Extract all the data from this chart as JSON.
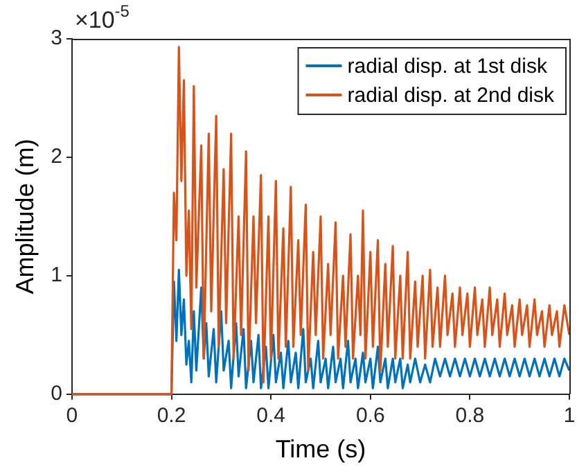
{
  "chart_data": {
    "type": "line",
    "xlabel": "Time (s)",
    "ylabel": "Amplitude (m)",
    "annotations": [
      "×10$^{-5}$"
    ],
    "xlim": [
      0,
      1
    ],
    "xticks": [
      0,
      0.2,
      0.4,
      0.6,
      0.8,
      1
    ],
    "ylim": [
      0,
      3
    ],
    "yticks": [
      0,
      1,
      2,
      3
    ],
    "grid": false,
    "legend": "top right",
    "marker": "none",
    "line_style": "solid",
    "series": [
      {
        "name": "radial disp. at 1st disk",
        "color": "#0072bd",
        "x": [
          0,
          0.2,
          0.205,
          0.21,
          0.215,
          0.22,
          0.225,
          0.23,
          0.235,
          0.24,
          0.245,
          0.25,
          0.26,
          0.265,
          0.27,
          0.275,
          0.285,
          0.29,
          0.3,
          0.305,
          0.315,
          0.32,
          0.33,
          0.335,
          0.345,
          0.35,
          0.36,
          0.365,
          0.375,
          0.38,
          0.39,
          0.395,
          0.405,
          0.41,
          0.42,
          0.425,
          0.435,
          0.44,
          0.45,
          0.455,
          0.465,
          0.47,
          0.48,
          0.485,
          0.495,
          0.5,
          0.51,
          0.515,
          0.525,
          0.53,
          0.54,
          0.545,
          0.555,
          0.56,
          0.57,
          0.575,
          0.585,
          0.59,
          0.6,
          0.605,
          0.615,
          0.62,
          0.63,
          0.635,
          0.645,
          0.65,
          0.66,
          0.665,
          0.675,
          0.68,
          0.69,
          0.7,
          0.71,
          0.72,
          0.73,
          0.74,
          0.75,
          0.76,
          0.77,
          0.78,
          0.79,
          0.8,
          0.81,
          0.82,
          0.83,
          0.84,
          0.85,
          0.86,
          0.87,
          0.88,
          0.89,
          0.9,
          0.91,
          0.92,
          0.93,
          0.94,
          0.95,
          0.96,
          0.97,
          0.98,
          0.99,
          1.0
        ],
        "values": [
          0,
          0,
          0.95,
          0.45,
          1.05,
          0.5,
          0.8,
          0.25,
          0.45,
          0.1,
          0.7,
          0.2,
          0.9,
          0.3,
          0.6,
          0.15,
          0.55,
          0.1,
          0.7,
          0.2,
          0.45,
          0.05,
          0.6,
          0.15,
          0.55,
          0.05,
          0.45,
          0.1,
          0.5,
          0.05,
          0.4,
          0.05,
          0.5,
          0.1,
          0.35,
          0.05,
          0.45,
          0.1,
          0.35,
          0.05,
          0.55,
          0.1,
          0.3,
          0.05,
          0.45,
          0.1,
          0.3,
          0.05,
          0.4,
          0.1,
          0.3,
          0.05,
          0.45,
          0.1,
          0.3,
          0.05,
          0.35,
          0.1,
          0.3,
          0.05,
          0.4,
          0.1,
          0.3,
          0.05,
          0.3,
          0.1,
          0.3,
          0.05,
          0.25,
          0.1,
          0.3,
          0.1,
          0.25,
          0.1,
          0.3,
          0.15,
          0.3,
          0.15,
          0.3,
          0.15,
          0.3,
          0.15,
          0.3,
          0.15,
          0.3,
          0.15,
          0.3,
          0.15,
          0.3,
          0.15,
          0.3,
          0.15,
          0.3,
          0.15,
          0.3,
          0.15,
          0.3,
          0.15,
          0.3,
          0.15,
          0.3,
          0.2
        ]
      },
      {
        "name": "radial disp. at 2nd disk",
        "color": "#d95319",
        "x": [
          0,
          0.2,
          0.205,
          0.21,
          0.215,
          0.22,
          0.225,
          0.23,
          0.235,
          0.24,
          0.245,
          0.25,
          0.26,
          0.265,
          0.275,
          0.28,
          0.29,
          0.295,
          0.305,
          0.31,
          0.32,
          0.325,
          0.335,
          0.34,
          0.35,
          0.355,
          0.365,
          0.37,
          0.38,
          0.385,
          0.395,
          0.4,
          0.41,
          0.415,
          0.425,
          0.43,
          0.44,
          0.445,
          0.455,
          0.46,
          0.47,
          0.475,
          0.485,
          0.49,
          0.5,
          0.505,
          0.515,
          0.52,
          0.53,
          0.535,
          0.545,
          0.55,
          0.56,
          0.565,
          0.575,
          0.58,
          0.585,
          0.59,
          0.6,
          0.605,
          0.615,
          0.62,
          0.63,
          0.635,
          0.645,
          0.65,
          0.66,
          0.665,
          0.675,
          0.68,
          0.69,
          0.695,
          0.705,
          0.71,
          0.72,
          0.725,
          0.735,
          0.74,
          0.75,
          0.755,
          0.765,
          0.77,
          0.78,
          0.785,
          0.795,
          0.8,
          0.81,
          0.815,
          0.825,
          0.83,
          0.84,
          0.845,
          0.855,
          0.86,
          0.87,
          0.875,
          0.885,
          0.89,
          0.9,
          0.905,
          0.915,
          0.92,
          0.93,
          0.935,
          0.945,
          0.95,
          0.96,
          0.965,
          0.975,
          0.98,
          0.99,
          1.0
        ],
        "values": [
          0,
          0,
          1.7,
          1.3,
          2.93,
          1.8,
          2.65,
          1.0,
          1.55,
          0.55,
          2.6,
          0.9,
          2.1,
          0.3,
          2.2,
          0.7,
          2.35,
          0.4,
          1.9,
          0.6,
          2.2,
          0.3,
          1.5,
          0.5,
          2.05,
          0.2,
          1.5,
          0.6,
          1.85,
          0.1,
          1.5,
          0.3,
          1.8,
          0.3,
          1.4,
          0.4,
          1.75,
          0.4,
          1.3,
          0.5,
          1.6,
          0.2,
          1.2,
          0.5,
          1.5,
          0.3,
          1.1,
          0.5,
          1.45,
          0.3,
          1.0,
          0.4,
          1.35,
          0.3,
          1.0,
          0.5,
          1.55,
          0.3,
          1.2,
          0.4,
          1.3,
          0.2,
          1.1,
          0.4,
          1.25,
          0.3,
          1.0,
          0.3,
          1.2,
          0.3,
          0.95,
          0.4,
          1.0,
          0.3,
          1.05,
          0.4,
          0.9,
          0.4,
          1.0,
          0.5,
          0.85,
          0.4,
          0.9,
          0.5,
          0.85,
          0.4,
          0.9,
          0.5,
          0.8,
          0.4,
          0.9,
          0.5,
          0.8,
          0.4,
          0.85,
          0.5,
          0.75,
          0.4,
          0.8,
          0.5,
          0.75,
          0.4,
          0.8,
          0.5,
          0.7,
          0.4,
          0.75,
          0.5,
          0.7,
          0.4,
          0.75,
          0.5
        ]
      }
    ]
  }
}
